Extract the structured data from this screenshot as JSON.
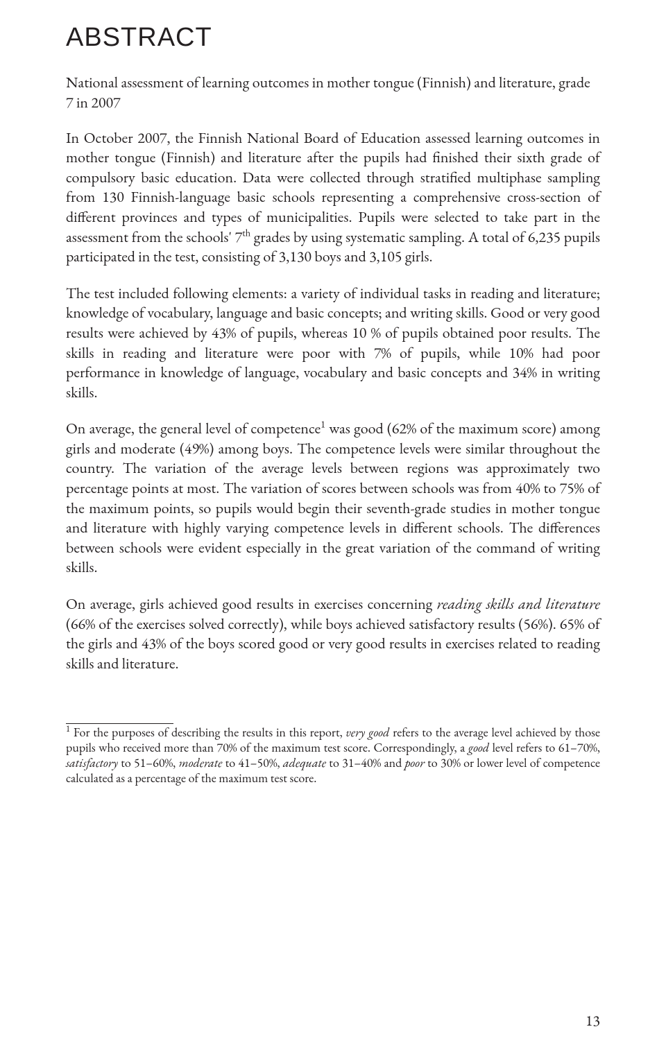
{
  "heading": "ABSTRACT",
  "subtitle": "National assessment of learning outcomes in mother tongue (Finnish) and literature, grade 7 in 2007",
  "para1_a": "In October 2007, the Finnish National Board of Education assessed learning outcomes in mother tongue (Finnish) and literature after the pupils had finished their sixth grade of compulsory basic education. Data were collected through stratified multiphase sampling from 130 Finnish-language basic schools representing a comprehensive cross-section of different provinces and types of municipalities. Pupils were selected to take part in the assessment from the schools' 7",
  "para1_sup": "th",
  "para1_b": " grades by using systematic sampling. A total of 6,235 pupils participated in the test, consisting of 3,130 boys and 3,105 girls.",
  "para2": "The test included following elements: a variety of individual tasks in reading and literature; knowledge of vocabulary, language and basic concepts; and writing skills. Good or very good results were achieved by 43% of pupils, whereas 10 % of pupils obtained poor results. The skills in reading and literature were poor with 7% of pupils, while 10% had poor performance in knowledge of language, vocabulary and basic concepts and 34% in writing skills.",
  "para3_a": "On average, the general level of competence",
  "para3_fn": "1",
  "para3_b": " was good (62% of the maximum score) among girls and moderate (49%) among boys. The competence levels were similar throughout the country. The variation of the average levels between regions was approximately two percentage points at most. The variation of scores between schools was from 40% to 75% of the maximum points, so pupils would begin their seventh-grade studies in mother tongue and literature with highly varying competence levels in different schools. The differences between schools were evident especially in the great variation of the command of writing skills.",
  "para4_a": "On average, girls achieved good results in  exercises concerning ",
  "para4_i1": "reading skills and literature",
  "para4_b": " (66% of the exercises solved correctly), while boys achieved satisfactory results (56%). 65% of the girls and 43% of the boys scored good or very good results in exercises related to reading skills and literature.",
  "footnote_marker": "1",
  "footnote_a": "  For the purposes of describing the results in this report, ",
  "footnote_i1": "very good",
  "footnote_b": " refers to the average level achieved by those pupils who received more than 70% of the maximum test score. Correspondingly, a ",
  "footnote_i2": "good",
  "footnote_c": " level refers to 61–70%, ",
  "footnote_i3": "satisfactory",
  "footnote_d": " to 51–60%, ",
  "footnote_i4": "moderate",
  "footnote_e": " to 41–50%, ",
  "footnote_i5": "adequate",
  "footnote_f": " to 31–40% and ",
  "footnote_i6": "poor",
  "footnote_g": " to 30% or lower level of competence calculated as a percentage of the maximum test score.",
  "page_number": "13"
}
